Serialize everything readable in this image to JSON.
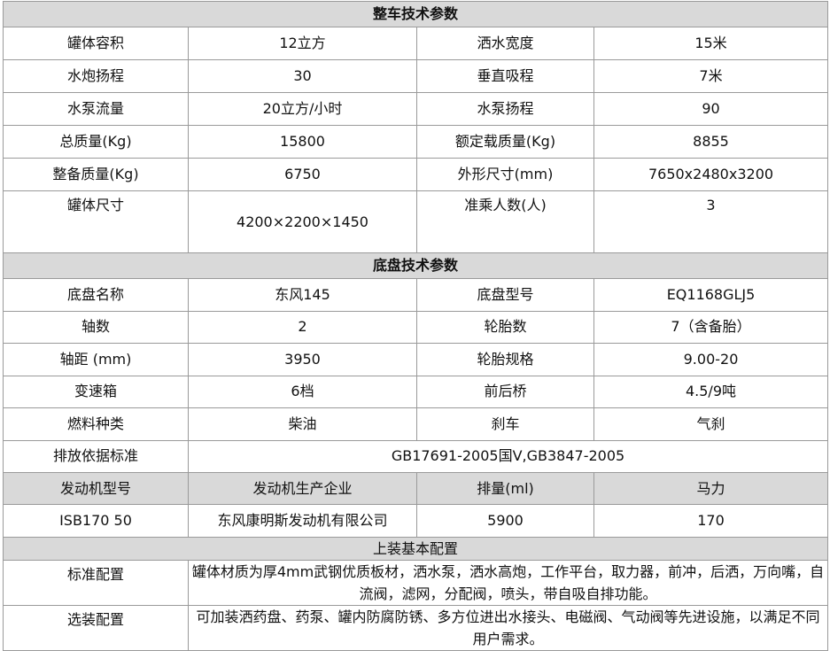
{
  "vehicle": {
    "title": "整车技术参数",
    "rows": [
      [
        "罐体容积",
        "12立方",
        "洒水宽度",
        "15米"
      ],
      [
        "水炮扬程",
        "30",
        "垂直吸程",
        "7米"
      ],
      [
        "水泵流量",
        "20立方/小时",
        "水泵扬程",
        "90"
      ],
      [
        "总质量(Kg)",
        "15800",
        "额定载质量(Kg)",
        "8855"
      ],
      [
        "整备质量(Kg)",
        "6750",
        "外形尺寸(mm)",
        "7650x2480x3200"
      ],
      [
        "罐体尺寸",
        "4200×2200×1450",
        "准乘人数(人)",
        "3"
      ]
    ]
  },
  "chassis": {
    "title": "底盘技术参数",
    "rows": [
      [
        "底盘名称",
        "东风145",
        "底盘型号",
        "EQ1168GLJ5"
      ],
      [
        "轴数",
        "2",
        "轮胎数",
        "7（含备胎）"
      ],
      [
        "轴距 (mm)",
        "3950",
        "轮胎规格",
        "9.00-20"
      ],
      [
        "变速箱",
        "6档",
        "前后桥",
        "4.5/9吨"
      ],
      [
        "燃料种类",
        "柴油",
        "刹车",
        "气刹"
      ]
    ],
    "emission": {
      "label": "排放依据标准",
      "value": "GB17691-2005国Ⅴ,GB3847-2005"
    }
  },
  "engine": {
    "headers": [
      "发动机型号",
      "发动机生产企业",
      "排量(ml)",
      "马力"
    ],
    "values": [
      "ISB170 50",
      "东风康明斯发动机有限公司",
      "5900",
      "170"
    ]
  },
  "body": {
    "title": "上装基本配置",
    "standard": {
      "label": "标准配置",
      "value": "罐体材质为厚4mm武钢优质板材，洒水泵，洒水高炮，工作平台，取力器，前冲，后洒，万向嘴，自流阀，滤网，分配阀，喷头，带自吸自排功能。"
    },
    "optional": {
      "label": "选装配置",
      "value": "可加装洒药盘、药泵、罐内防腐防锈、多方位进出水接头、电磁阀、气动阀等先进设施，以满足不同用户需求。"
    }
  },
  "colors": {
    "header_bg": "#d9d9d9",
    "border": "#9a9a9a"
  }
}
